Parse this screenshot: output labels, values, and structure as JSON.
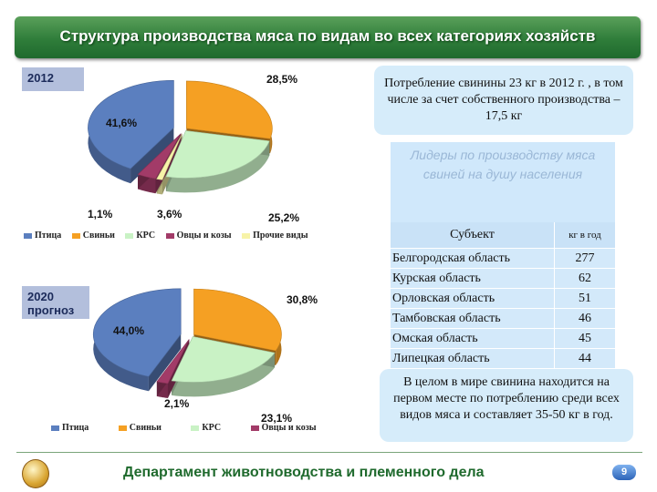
{
  "title": "Структура производства мяса по видам во всех категориях хозяйств",
  "chart_data": [
    {
      "type": "pie",
      "title": "2012",
      "categories": [
        "Птица",
        "Свиньи",
        "КРС",
        "Овцы и козы",
        "Прочие виды"
      ],
      "values": [
        41.6,
        28.5,
        25.2,
        3.6,
        1.1
      ],
      "labels": [
        "41,6%",
        "28,5%",
        "25,2%",
        "3,6%",
        "1,1%"
      ],
      "colors": [
        "#5b7fbf",
        "#f5a023",
        "#c9f2c5",
        "#a23b68",
        "#f7f3a8"
      ],
      "legend": "bottom"
    },
    {
      "type": "pie",
      "title_lines": [
        "2020",
        "прогноз"
      ],
      "categories": [
        "Птица",
        "Свиньи",
        "КРС",
        "Овцы и козы"
      ],
      "values": [
        44.0,
        30.8,
        23.1,
        2.1
      ],
      "labels": [
        "44,0%",
        "30,8%",
        "23,1%",
        "2,1%"
      ],
      "colors": [
        "#5b7fbf",
        "#f5a023",
        "#c9f2c5",
        "#a23b68"
      ],
      "legend": "bottom"
    }
  ],
  "consumption_box": "Потребление свинины 23 кг в 2012 г. , в том числе за счет собственного производства – 17,5 кг",
  "leaders": {
    "heading": "Лидеры по производству мяса свиней на душу населения",
    "col_subject": "Субъект",
    "col_value": "кг в год",
    "rows": [
      {
        "subject": "Белгородская область",
        "value": "277"
      },
      {
        "subject": "Курская область",
        "value": "62"
      },
      {
        "subject": "Орловская область",
        "value": "51"
      },
      {
        "subject": "Тамбовская область",
        "value": "46"
      },
      {
        "subject": "Омская область",
        "value": "45"
      },
      {
        "subject": "Липецкая область",
        "value": "44"
      }
    ]
  },
  "world_box": "В целом в мире свинина находится на первом месте по потреблению среди всех видов мяса и составляет 35-50 кг в год.",
  "footer": {
    "text": "Департамент животноводства и племенного дела",
    "page": "9"
  }
}
